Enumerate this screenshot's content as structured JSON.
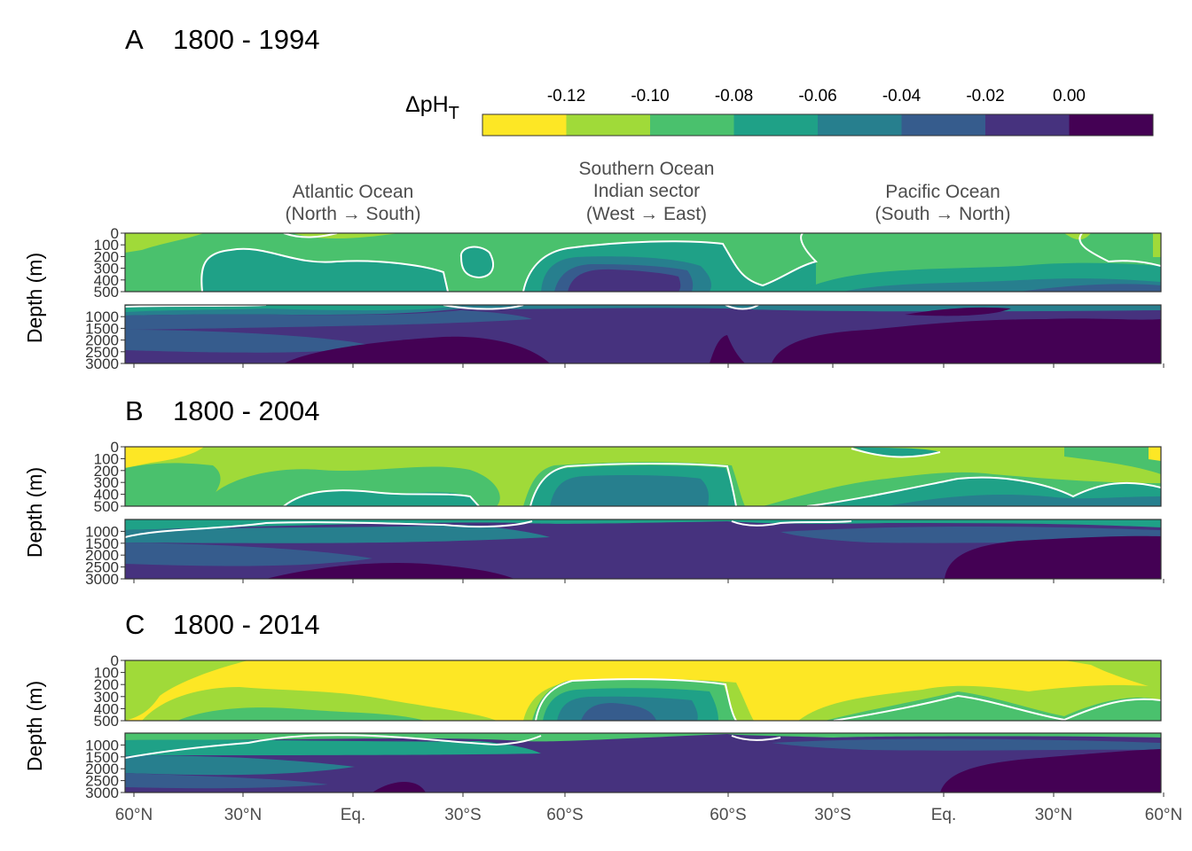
{
  "chart_data": {
    "type": "heatmap",
    "x_ticks": [
      "60°N",
      "30°N",
      "Eq.",
      "30°S",
      "60°S",
      "60°S",
      "30°S",
      "Eq.",
      "30°N",
      "60°N"
    ],
    "regions": [
      {
        "line1": "Atlantic Ocean",
        "line2": "(North → South)",
        "line3": ""
      },
      {
        "line1": "Southern Ocean",
        "line2": "Indian sector",
        "line3": "(West → East)"
      },
      {
        "line1": "Pacific Ocean",
        "line2": "(South → North)",
        "line3": ""
      }
    ],
    "y_label": "Depth (m)",
    "y_ticks_upper": [
      "0",
      "100",
      "200",
      "300",
      "400",
      "500"
    ],
    "y_ticks_lower": [
      "1000",
      "1500",
      "2000",
      "2500",
      "3000"
    ],
    "y_range_upper": [
      0,
      500
    ],
    "y_range_lower": [
      500,
      3000
    ],
    "legend": {
      "title": "ΔpH",
      "title_subscript": "T",
      "breaks": [
        "-0.12",
        "-0.10",
        "-0.08",
        "-0.06",
        "-0.04",
        "-0.02",
        "0.00"
      ],
      "colors": [
        "#fde725",
        "#a0da39",
        "#4ac16d",
        "#1fa187",
        "#277f8e",
        "#365c8d",
        "#46327e",
        "#440154"
      ]
    },
    "contour_color": "#ffffff",
    "panels": [
      {
        "label": "A",
        "period": "1800 - 1994"
      },
      {
        "label": "B",
        "period": "1800 - 2004"
      },
      {
        "label": "C",
        "period": "1800 - 2014"
      }
    ]
  }
}
